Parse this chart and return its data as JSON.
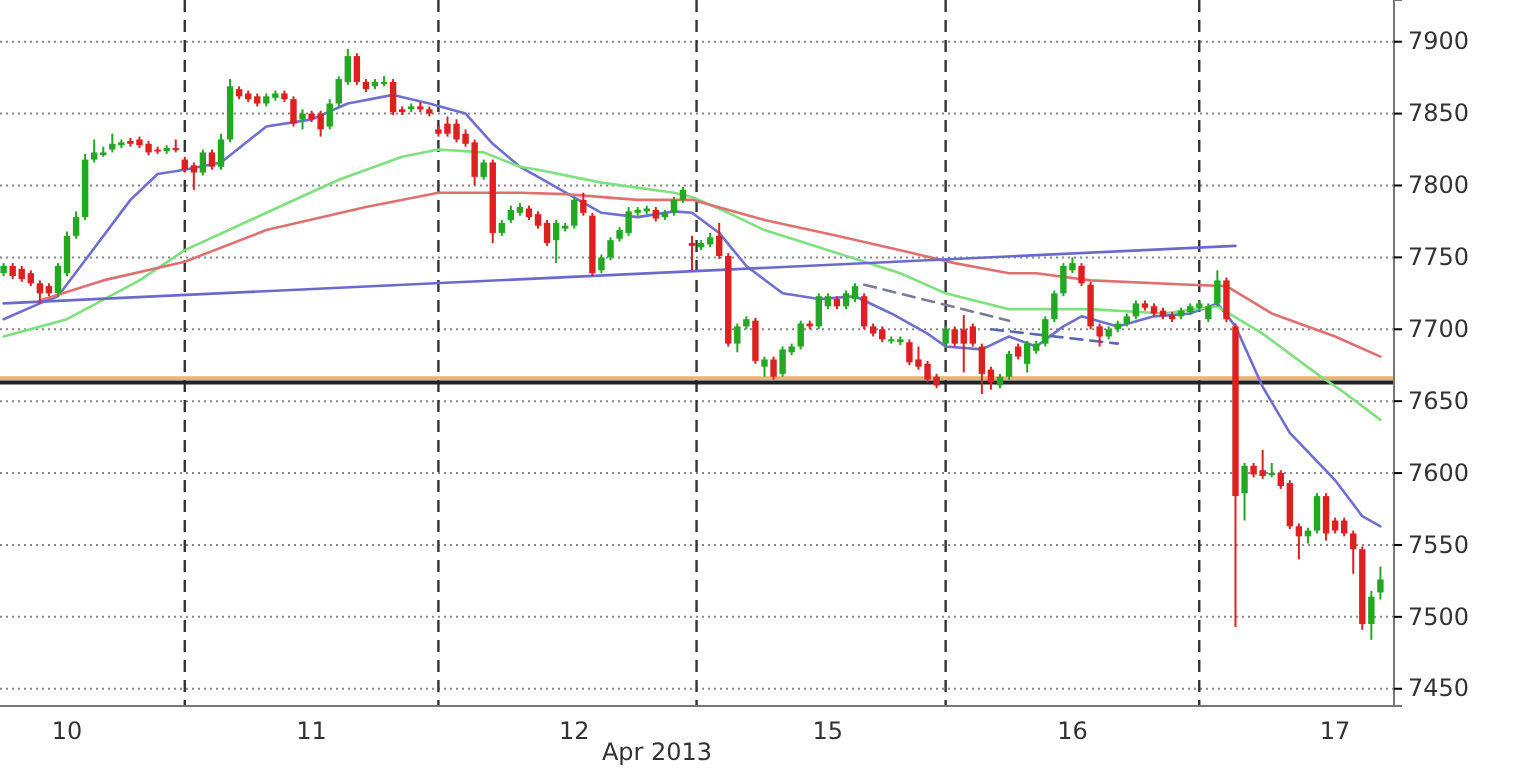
{
  "chart_data": {
    "type": "candlestick",
    "xlabel": "Apr 2013",
    "ylim": [
      7438,
      7929
    ],
    "yticks": [
      7450,
      7500,
      7550,
      7600,
      7650,
      7700,
      7750,
      7800,
      7850,
      7900
    ],
    "grid": "y",
    "categories": [
      null,
      null,
      null,
      null,
      null,
      null,
      null,
      "10",
      null,
      null,
      null,
      null,
      null,
      null,
      null,
      null,
      null,
      null,
      null,
      null,
      null,
      null,
      null,
      null,
      null,
      null,
      null,
      null,
      null,
      null,
      null,
      null,
      null,
      null,
      "11",
      null,
      null,
      null,
      null,
      null,
      null,
      null,
      null,
      null,
      null,
      null,
      null,
      null,
      null,
      null,
      null,
      null,
      null,
      null,
      null,
      null,
      null,
      null,
      null,
      null,
      null,
      null,
      null,
      "12",
      null,
      null,
      null,
      null,
      null,
      null,
      null,
      null,
      null,
      null,
      null,
      null,
      null,
      null,
      null,
      null,
      null,
      null,
      null,
      null,
      null,
      null,
      null,
      null,
      null,
      null,
      null,
      "15",
      null,
      null,
      null,
      null,
      null,
      null,
      null,
      null,
      null,
      null,
      null,
      null,
      null,
      null,
      null,
      null,
      null,
      null,
      null,
      null,
      null,
      null,
      null,
      null,
      null,
      null,
      "16",
      null,
      null,
      null,
      null,
      null,
      null,
      null,
      null,
      null,
      null,
      null,
      null,
      null,
      null,
      null,
      null,
      null,
      null,
      null,
      null,
      null,
      null,
      null,
      null,
      null,
      null,
      null,
      null,
      "17",
      null,
      null,
      null,
      null,
      null
    ],
    "colors": [
      "#22a822",
      "#dd2020",
      "#dd2020",
      "#dd2020",
      "#dd2020",
      "#dd2020",
      "#22a822",
      "#22a822",
      "#22a822",
      "#22a822",
      "#22a822",
      "#22a822",
      "#22a822",
      "#22a822",
      "#dd2020",
      "#dd2020",
      "#dd2020",
      "#dd2020",
      "#22a822",
      "#dd2020",
      "#dd2020",
      "#dd2020",
      "#22a822",
      "#dd2020",
      "#22a822",
      "#22a822",
      "#dd2020",
      "#dd2020",
      "#dd2020",
      "#22a822",
      "#22a822",
      "#dd2020",
      "#dd2020",
      "#22a822",
      "#dd2020",
      "#dd2020",
      "#22a822",
      "#22a822",
      "#22a822",
      "#dd2020",
      "#dd2020",
      "#22a822",
      "#22a822",
      "#dd2020",
      "#dd2020",
      "#22a822",
      "#dd2020",
      "#dd2020",
      "#dd2020",
      "#dd2020",
      "#dd2020",
      "#dd2020",
      "#dd2020",
      "#22a822",
      "#dd2020",
      "#22a822",
      "#22a822",
      "#22a822",
      "#dd2020",
      "#dd2020",
      "#dd2020",
      "#22a822",
      "#22a822",
      "#22a822",
      "#dd2020",
      "#dd2020",
      "#22a822",
      "#22a822",
      "#22a822",
      "#22a822",
      "#22a822",
      "#22a822",
      "#dd2020",
      "#22a822",
      "#22a822",
      "#22a822",
      "#dd2020",
      "#22a822",
      "#22a822",
      "#dd2020",
      "#dd2020",
      "#22a822",
      "#22a822",
      "#dd2020",
      "#22a822",
      "#dd2020",
      "#22a822",
      "#22a822",
      "#22a822",
      "#dd2020",
      "#22a822",
      "#22a822",
      "#dd2020",
      "#22a822",
      "#22a822",
      "#dd2020",
      "#dd2020",
      "#dd2020",
      "#22a822",
      "#22a822",
      "#dd2020",
      "#dd2020",
      "#dd2020",
      "#dd2020",
      "#22a822",
      "#dd2020",
      "#dd2020",
      "#dd2020",
      "#dd2020",
      "#dd2020",
      "#22a822",
      "#22a822",
      "#dd2020",
      "#22a822",
      "#22a822",
      "#22a822",
      "#22a822",
      "#22a822",
      "#22a822",
      "#dd2020",
      "#dd2020",
      "#dd2020",
      "#22a822",
      "#22a822",
      "#22a822",
      "#22a822",
      "#dd2020",
      "#dd2020",
      "#dd2020",
      "#dd2020",
      "#22a822",
      "#22a822",
      "#22a822",
      "#22a822",
      "#22a822",
      "#dd2020",
      "#dd2020",
      "#22a822",
      "#dd2020",
      "#dd2020",
      "#22a822",
      "#dd2020",
      "#dd2020",
      "#dd2020",
      "#22a822",
      "#22a822",
      "#dd2020",
      "#dd2020",
      "#dd2020",
      "#dd2020",
      "#dd2020",
      "#22a822",
      "#22a822"
    ],
    "ohlc": [
      [
        7739,
        7746,
        7737,
        7744
      ],
      [
        7744,
        7746,
        7735,
        7737
      ],
      [
        7742,
        7744,
        7733,
        7735
      ],
      [
        7739,
        7741,
        7730,
        7732
      ],
      [
        7732,
        7734,
        7718,
        7725
      ],
      [
        7730,
        7732,
        7723,
        7725
      ],
      [
        7725,
        7746,
        7723,
        7744
      ],
      [
        7739,
        7768,
        7737,
        7765
      ],
      [
        7765,
        7782,
        7763,
        7778
      ],
      [
        7778,
        7822,
        7776,
        7818
      ],
      [
        7818,
        7832,
        7816,
        7823
      ],
      [
        7821,
        7827,
        7820,
        7823
      ],
      [
        7825,
        7836,
        7823,
        7829
      ],
      [
        7828,
        7832,
        7826,
        7830
      ],
      [
        7831,
        7833,
        7827,
        7829
      ],
      [
        7832,
        7834,
        7826,
        7828
      ],
      [
        7829,
        7831,
        7821,
        7823
      ],
      [
        7825,
        7827,
        7822,
        7824
      ],
      [
        7824,
        7828,
        7822,
        7826
      ],
      [
        7826,
        7832,
        7823,
        7825
      ],
      [
        7818,
        7820,
        7809,
        7811
      ],
      [
        7814,
        7816,
        7797,
        7809
      ],
      [
        7809,
        7825,
        7807,
        7823
      ],
      [
        7823,
        7825,
        7811,
        7813
      ],
      [
        7813,
        7836,
        7811,
        7832
      ],
      [
        7832,
        7874,
        7830,
        7869
      ],
      [
        7867,
        7869,
        7860,
        7862
      ],
      [
        7864,
        7866,
        7858,
        7860
      ],
      [
        7862,
        7864,
        7855,
        7857
      ],
      [
        7857,
        7864,
        7855,
        7862
      ],
      [
        7861,
        7866,
        7859,
        7864
      ],
      [
        7864,
        7866,
        7858,
        7860
      ],
      [
        7860,
        7862,
        7841,
        7843
      ],
      [
        7846,
        7853,
        7839,
        7850
      ],
      [
        7850,
        7852,
        7844,
        7846
      ],
      [
        7850,
        7852,
        7834,
        7839
      ],
      [
        7841,
        7860,
        7839,
        7857
      ],
      [
        7857,
        7876,
        7855,
        7874
      ],
      [
        7872,
        7895,
        7870,
        7890
      ],
      [
        7890,
        7892,
        7870,
        7872
      ],
      [
        7872,
        7874,
        7865,
        7867
      ],
      [
        7869,
        7874,
        7867,
        7872
      ],
      [
        7871,
        7876,
        7869,
        7872
      ],
      [
        7872,
        7874,
        7849,
        7851
      ],
      [
        7853,
        7855,
        7849,
        7851
      ],
      [
        7853,
        7857,
        7851,
        7855
      ],
      [
        7855,
        7858,
        7851,
        7853
      ],
      [
        7853,
        7855,
        7848,
        7850
      ],
      [
        7839,
        7841,
        7834,
        7836
      ],
      [
        7843,
        7848,
        7834,
        7836
      ],
      [
        7843,
        7846,
        7830,
        7832
      ],
      [
        7836,
        7839,
        7827,
        7829
      ],
      [
        7830,
        7832,
        7800,
        7806
      ],
      [
        7806,
        7818,
        7804,
        7816
      ],
      [
        7816,
        7818,
        7760,
        7767
      ],
      [
        7767,
        7776,
        7765,
        7774
      ],
      [
        7776,
        7786,
        7774,
        7783
      ],
      [
        7781,
        7788,
        7779,
        7785
      ],
      [
        7784,
        7786,
        7776,
        7778
      ],
      [
        7780,
        7782,
        7770,
        7772
      ],
      [
        7774,
        7776,
        7758,
        7760
      ],
      [
        7762,
        7776,
        7746,
        7774
      ],
      [
        7770,
        7774,
        7768,
        7772
      ],
      [
        7772,
        7792,
        7770,
        7790
      ],
      [
        7790,
        7795,
        7779,
        7781
      ],
      [
        7779,
        7781,
        7737,
        7739
      ],
      [
        7741,
        7752,
        7739,
        7750
      ],
      [
        7750,
        7764,
        7748,
        7762
      ],
      [
        7763,
        7771,
        7761,
        7769
      ],
      [
        7767,
        7785,
        7765,
        7782
      ],
      [
        7781,
        7785,
        7779,
        7783
      ],
      [
        7782,
        7786,
        7780,
        7784
      ],
      [
        7783,
        7785,
        7775,
        7777
      ],
      [
        7778,
        7783,
        7776,
        7781
      ],
      [
        7781,
        7792,
        7779,
        7790
      ],
      [
        7790,
        7799,
        7788,
        7797
      ],
      [
        7760,
        7765,
        7741,
        7758
      ],
      [
        7757,
        7762,
        7755,
        7760
      ],
      [
        7759,
        7767,
        7757,
        7764
      ],
      [
        7765,
        7774,
        7749,
        7751
      ],
      [
        7751,
        7753,
        7688,
        7690
      ],
      [
        7690,
        7704,
        7684,
        7702
      ],
      [
        7702,
        7709,
        7700,
        7707
      ],
      [
        7706,
        7708,
        7676,
        7678
      ],
      [
        7674,
        7681,
        7667,
        7679
      ],
      [
        7679,
        7681,
        7665,
        7667
      ],
      [
        7669,
        7688,
        7667,
        7686
      ],
      [
        7684,
        7690,
        7682,
        7688
      ],
      [
        7688,
        7706,
        7686,
        7704
      ],
      [
        7704,
        7706,
        7700,
        7702
      ],
      [
        7702,
        7725,
        7700,
        7723
      ],
      [
        7716,
        7725,
        7714,
        7723
      ],
      [
        7721,
        7723,
        7714,
        7716
      ],
      [
        7716,
        7727,
        7714,
        7725
      ],
      [
        7721,
        7732,
        7719,
        7730
      ],
      [
        7723,
        7725,
        7700,
        7702
      ],
      [
        7702,
        7704,
        7695,
        7697
      ],
      [
        7700,
        7702,
        7691,
        7693
      ],
      [
        7692,
        7695,
        7690,
        7693
      ],
      [
        7691,
        7695,
        7689,
        7693
      ],
      [
        7691,
        7693,
        7675,
        7677
      ],
      [
        7679,
        7688,
        7672,
        7674
      ],
      [
        7676,
        7678,
        7663,
        7665
      ],
      [
        7667,
        7669,
        7659,
        7661
      ],
      [
        7690,
        7702,
        7688,
        7700
      ],
      [
        7700,
        7702,
        7688,
        7690
      ],
      [
        7700,
        7710,
        7670,
        7690
      ],
      [
        7702,
        7704,
        7688,
        7690
      ],
      [
        7688,
        7690,
        7655,
        7669
      ],
      [
        7672,
        7674,
        7658,
        7663
      ],
      [
        7661,
        7669,
        7659,
        7667
      ],
      [
        7667,
        7685,
        7665,
        7683
      ],
      [
        7688,
        7690,
        7679,
        7681
      ],
      [
        7676,
        7692,
        7670,
        7690
      ],
      [
        7685,
        7692,
        7683,
        7690
      ],
      [
        7690,
        7709,
        7688,
        7707
      ],
      [
        7707,
        7727,
        7705,
        7725
      ],
      [
        7725,
        7746,
        7723,
        7744
      ],
      [
        7741,
        7750,
        7739,
        7746
      ],
      [
        7744,
        7746,
        7730,
        7732
      ],
      [
        7731,
        7733,
        7700,
        7702
      ],
      [
        7702,
        7704,
        7688,
        7695
      ],
      [
        7695,
        7702,
        7693,
        7700
      ],
      [
        7700,
        7706,
        7698,
        7704
      ],
      [
        7704,
        7711,
        7702,
        7709
      ],
      [
        7709,
        7720,
        7707,
        7718
      ],
      [
        7718,
        7720,
        7713,
        7715
      ],
      [
        7716,
        7718,
        7709,
        7711
      ],
      [
        7713,
        7715,
        7707,
        7709
      ],
      [
        7710,
        7712,
        7705,
        7707
      ],
      [
        7709,
        7715,
        7707,
        7713
      ],
      [
        7712,
        7718,
        7710,
        7716
      ],
      [
        7715,
        7720,
        7713,
        7718
      ],
      [
        7707,
        7718,
        7705,
        7716
      ],
      [
        7718,
        7741,
        7716,
        7734
      ],
      [
        7734,
        7736,
        7705,
        7707
      ],
      [
        7702,
        7704,
        7493,
        7584
      ],
      [
        7586,
        7607,
        7567,
        7605
      ],
      [
        7605,
        7607,
        7597,
        7599
      ],
      [
        7602,
        7616,
        7596,
        7598
      ],
      [
        7599,
        7607,
        7597,
        7600
      ],
      [
        7600,
        7602,
        7589,
        7591
      ],
      [
        7593,
        7595,
        7561,
        7563
      ],
      [
        7563,
        7565,
        7540,
        7556
      ],
      [
        7556,
        7562,
        7551,
        7560
      ],
      [
        7560,
        7586,
        7558,
        7584
      ],
      [
        7584,
        7586,
        7553,
        7558
      ],
      [
        7567,
        7569,
        7558,
        7560
      ],
      [
        7567,
        7569,
        7556,
        7558
      ],
      [
        7558,
        7560,
        7530,
        7547
      ],
      [
        7547,
        7549,
        7491,
        7495
      ],
      [
        7495,
        7518,
        7484,
        7514
      ],
      [
        7517,
        7535,
        7512,
        7526
      ]
    ],
    "series": [
      {
        "type": "line",
        "color": "#6f6fd0",
        "values": [
          7707,
          null,
          null,
          null,
          7718,
          null,
          7723,
          null,
          null,
          7748,
          null,
          null,
          null,
          null,
          7790,
          null,
          null,
          7808,
          null,
          null,
          7811,
          null,
          null,
          null,
          7816,
          null,
          null,
          null,
          null,
          7841,
          null,
          null,
          null,
          null,
          7846,
          null,
          null,
          null,
          7857,
          null,
          null,
          null,
          null,
          7863,
          null,
          null,
          null,
          7857,
          null,
          null,
          null,
          7850,
          null,
          null,
          7829,
          null,
          null,
          7813,
          null,
          7806,
          null,
          null,
          null,
          null,
          null,
          null,
          7781,
          null,
          null,
          null,
          7778,
          null,
          null,
          null,
          7782,
          null,
          7781,
          null,
          null,
          7767,
          null,
          null,
          7744,
          null,
          null,
          null,
          7725,
          null,
          null,
          null,
          7721,
          null,
          null,
          null,
          7723,
          null,
          null,
          null,
          7711,
          null,
          null,
          null,
          7697,
          null,
          7688,
          null,
          null,
          null,
          7686,
          null,
          null,
          7695,
          null,
          null,
          7688,
          null,
          null,
          7702,
          null,
          7709,
          null,
          null,
          null,
          7702,
          null,
          null,
          null,
          7709,
          null,
          null,
          null,
          7711,
          null,
          null,
          7718,
          null,
          7702,
          null,
          null,
          7660,
          null,
          null,
          7628,
          null,
          null,
          null,
          null,
          7595,
          null,
          null,
          7570,
          null,
          7563
        ]
      },
      {
        "type": "line",
        "color": "#7ee07e",
        "values": [
          7695,
          null,
          null,
          null,
          null,
          null,
          null,
          7707,
          null,
          null,
          null,
          null,
          null,
          null,
          null,
          7734,
          null,
          null,
          null,
          null,
          7755,
          null,
          null,
          null,
          null,
          null,
          null,
          null,
          null,
          7781,
          null,
          null,
          null,
          null,
          null,
          null,
          null,
          7804,
          null,
          null,
          null,
          null,
          null,
          null,
          7820,
          null,
          null,
          null,
          7825,
          null,
          null,
          null,
          null,
          7823,
          null,
          null,
          null,
          7813,
          null,
          7811,
          null,
          null,
          null,
          null,
          null,
          null,
          7802,
          null,
          null,
          null,
          null,
          null,
          null,
          null,
          7795,
          null,
          7792,
          null,
          null,
          null,
          7781,
          null,
          null,
          null,
          7769,
          null,
          null,
          null,
          null,
          null,
          null,
          null,
          7753,
          null,
          null,
          null,
          null,
          null,
          null,
          7739,
          null,
          null,
          null,
          null,
          7725,
          null,
          null,
          null,
          null,
          null,
          null,
          7714,
          null,
          null,
          null,
          7714,
          null,
          null,
          null,
          null,
          7714,
          null,
          null,
          null,
          null,
          null,
          null,
          null,
          7711,
          null,
          null,
          null,
          null,
          null,
          7716,
          null,
          null,
          null,
          null,
          7697,
          null,
          null,
          null,
          null,
          null,
          7669,
          null,
          null,
          7656,
          null,
          null,
          null,
          7637
        ]
      },
      {
        "type": "line",
        "color": "#e07070",
        "values": [
          null,
          null,
          null,
          null,
          7720,
          null,
          null,
          null,
          null,
          null,
          null,
          7734,
          null,
          null,
          null,
          null,
          null,
          null,
          null,
          null,
          7747,
          null,
          null,
          null,
          null,
          null,
          null,
          null,
          null,
          7769,
          null,
          null,
          null,
          null,
          null,
          null,
          null,
          null,
          null,
          null,
          7785,
          null,
          null,
          null,
          null,
          null,
          null,
          null,
          7795,
          null,
          null,
          null,
          null,
          null,
          null,
          null,
          null,
          7795,
          null,
          null,
          null,
          null,
          7794,
          null,
          null,
          null,
          null,
          null,
          null,
          null,
          7790,
          null,
          null,
          null,
          null,
          null,
          7790,
          null,
          null,
          null,
          null,
          null,
          null,
          null,
          7776,
          null,
          null,
          null,
          null,
          null,
          null,
          null,
          7765,
          null,
          null,
          null,
          null,
          null,
          null,
          7755,
          null,
          null,
          null,
          null,
          null,
          7746,
          null,
          null,
          null,
          null,
          null,
          7739,
          null,
          null,
          7739,
          null,
          null,
          null,
          null,
          null,
          7734,
          null,
          null,
          null,
          null,
          null,
          null,
          null,
          null,
          null,
          null,
          7731,
          null,
          null,
          null,
          7730,
          null,
          null,
          null,
          null,
          7711,
          null,
          null,
          null,
          null,
          null,
          null,
          7695,
          null,
          null,
          null,
          null,
          7681
        ]
      },
      {
        "type": "line",
        "color": "#6a6acc",
        "values": [
          7718,
          null,
          null,
          null,
          null,
          null,
          null,
          null,
          null,
          null,
          null,
          null,
          null,
          null,
          null,
          null,
          null,
          null,
          null,
          null,
          null,
          null,
          null,
          null,
          null,
          null,
          null,
          null,
          null,
          null,
          null,
          null,
          null,
          null,
          null,
          null,
          null,
          null,
          null,
          null,
          null,
          null,
          null,
          null,
          null,
          null,
          null,
          null,
          null,
          null,
          null,
          null,
          null,
          null,
          null,
          null,
          null,
          null,
          null,
          null,
          null,
          null,
          null,
          null,
          null,
          null,
          null,
          null,
          null,
          null,
          null,
          null,
          null,
          null,
          null,
          null,
          null,
          null,
          null,
          null,
          null,
          null,
          null,
          null,
          null,
          null,
          null,
          null,
          null,
          null,
          null,
          null,
          null,
          null,
          null,
          null,
          null,
          null,
          null,
          null,
          null,
          null,
          null,
          null,
          null,
          null,
          null,
          null,
          null,
          null,
          null,
          null,
          null,
          null,
          null,
          null,
          null,
          null,
          null,
          null,
          null,
          null,
          null,
          null,
          null,
          null,
          null,
          null,
          null,
          null,
          null,
          null,
          null,
          null,
          null,
          null,
          7758,
          null,
          null,
          null,
          null,
          null,
          null,
          null,
          null,
          null,
          null,
          null,
          null,
          null,
          null,
          null,
          null
        ]
      },
      {
        "type": "line",
        "color": "#7a7a9a",
        "line_style": "dashed",
        "values": [
          null,
          null,
          null,
          null,
          null,
          null,
          null,
          null,
          null,
          null,
          null,
          null,
          null,
          null,
          null,
          null,
          null,
          null,
          null,
          null,
          null,
          null,
          null,
          null,
          null,
          null,
          null,
          null,
          null,
          null,
          null,
          null,
          null,
          null,
          null,
          null,
          null,
          null,
          null,
          null,
          null,
          null,
          null,
          null,
          null,
          null,
          null,
          null,
          null,
          null,
          null,
          null,
          null,
          null,
          null,
          null,
          null,
          null,
          null,
          null,
          null,
          null,
          null,
          null,
          null,
          null,
          null,
          null,
          null,
          null,
          null,
          null,
          null,
          null,
          null,
          null,
          null,
          null,
          null,
          null,
          null,
          null,
          null,
          null,
          null,
          null,
          null,
          null,
          null,
          null,
          null,
          null,
          null,
          null,
          null,
          7731,
          null,
          null,
          null,
          null,
          null,
          null,
          null,
          null,
          null,
          null,
          null,
          null,
          null,
          null,
          null,
          7706,
          null,
          null,
          null,
          null,
          null,
          null,
          null,
          null,
          null,
          null,
          null,
          null,
          null,
          null,
          null,
          null,
          null,
          null,
          null,
          null,
          null,
          null,
          null,
          null,
          null,
          null,
          null,
          null,
          null,
          null,
          null,
          null,
          null,
          null,
          null,
          null,
          null,
          null,
          null,
          null,
          null
        ]
      },
      {
        "type": "line",
        "color": "#5a68b0",
        "line_style": "dashed",
        "values": [
          null,
          null,
          null,
          null,
          null,
          null,
          null,
          null,
          null,
          null,
          null,
          null,
          null,
          null,
          null,
          null,
          null,
          null,
          null,
          null,
          null,
          null,
          null,
          null,
          null,
          null,
          null,
          null,
          null,
          null,
          null,
          null,
          null,
          null,
          null,
          null,
          null,
          null,
          null,
          null,
          null,
          null,
          null,
          null,
          null,
          null,
          null,
          null,
          null,
          null,
          null,
          null,
          null,
          null,
          null,
          null,
          null,
          null,
          null,
          null,
          null,
          null,
          null,
          null,
          null,
          null,
          null,
          null,
          null,
          null,
          null,
          null,
          null,
          null,
          null,
          null,
          null,
          null,
          null,
          null,
          null,
          null,
          null,
          null,
          null,
          null,
          null,
          null,
          null,
          null,
          null,
          null,
          null,
          null,
          null,
          null,
          null,
          null,
          null,
          null,
          null,
          null,
          null,
          null,
          null,
          null,
          null,
          null,
          null,
          7700,
          null,
          null,
          null,
          null,
          null,
          null,
          null,
          null,
          null,
          null,
          null,
          null,
          null,
          7690,
          null,
          null,
          null,
          null,
          null,
          null,
          null,
          null,
          null,
          null,
          null,
          null,
          null,
          null,
          null,
          null,
          null,
          null,
          null,
          null,
          null,
          null,
          null,
          null,
          null,
          null,
          null,
          null,
          null
        ]
      }
    ],
    "ref_lines": [
      {
        "axis": "y",
        "value": 7666,
        "color": "#f0b070"
      },
      {
        "axis": "y",
        "value": 7663,
        "color": "#222222"
      }
    ]
  }
}
